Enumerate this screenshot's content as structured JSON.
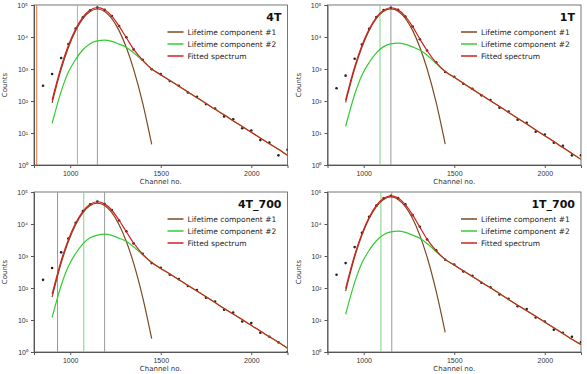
{
  "chart_data": [
    {
      "type": "line",
      "title": "4T",
      "x_label": "Channel no.",
      "y_label": "Counts",
      "log": "y",
      "legend": "upper right",
      "xlim": [
        800,
        2200
      ],
      "xticks": [
        1000,
        1500,
        2000
      ],
      "ylim": [
        1,
        100000
      ],
      "yticks": [
        {
          "value": 1,
          "label": "10⁰"
        },
        {
          "value": 10,
          "label": "10¹"
        },
        {
          "value": 100,
          "label": "10²"
        },
        {
          "value": 1000,
          "label": "10³"
        },
        {
          "value": 10000,
          "label": "10⁴"
        },
        {
          "value": 100000,
          "label": "10⁵"
        }
      ],
      "x": [
        850,
        900,
        950,
        990,
        1030,
        1070,
        1110,
        1150,
        1190,
        1230,
        1270,
        1310,
        1350,
        1400,
        1450,
        1500,
        1550,
        1600,
        1650,
        1700,
        1750,
        1800,
        1850,
        1900,
        1950,
        2000,
        2050,
        2100,
        2150,
        2200
      ],
      "vlines": [
        {
          "x": 815,
          "color": "#e8743b"
        },
        {
          "x": 1040,
          "color": "#7fd17f"
        },
        {
          "x": 1150,
          "color": "#999999"
        }
      ],
      "series": [
        {
          "type": "scatter",
          "marker": "circle",
          "color": "#222222",
          "values": [
            300,
            700,
            2200,
            6000,
            18500,
            41000,
            68000,
            83000,
            70500,
            45500,
            22000,
            9800,
            4100,
            1950,
            980,
            690,
            420,
            300,
            185,
            135,
            80,
            58,
            33,
            27,
            14,
            12,
            6,
            5,
            2,
            3
          ]
        },
        {
          "name": "Lifetime component #1",
          "type": "line",
          "line_style": "solid",
          "color": "#7b4b22",
          "values": [
            null,
            87,
            994,
            4710,
            15800,
            37500,
            63000,
            75000,
            63000,
            37500,
            15800,
            4710,
            994,
            87,
            4.4,
            null,
            null,
            null,
            null,
            null,
            null,
            null,
            null,
            null,
            null,
            null,
            null,
            null,
            null,
            null
          ]
        },
        {
          "name": "Lifetime component #2",
          "type": "line",
          "line_style": "solid",
          "color": "#33cc33",
          "values": [
            null,
            20,
            200,
            800,
            2000,
            4000,
            6200,
            7600,
            8000,
            7300,
            6000,
            4800,
            3200,
            1800,
            1000,
            665,
            440,
            290,
            192,
            127,
            84,
            55,
            37,
            24,
            16,
            10.6,
            7,
            4.6,
            3.1,
            2
          ]
        },
        {
          "name": "Fitted spectrum",
          "type": "line",
          "line_style": "solid",
          "color": "#d42020",
          "values": [
            null,
            107,
            1190,
            5510,
            17800,
            41500,
            69200,
            82600,
            71000,
            44800,
            21800,
            9510,
            4190,
            1890,
            1000,
            665,
            440,
            290,
            192,
            127,
            84,
            55,
            37,
            24,
            16,
            10.6,
            7,
            4.6,
            3.1,
            2
          ]
        }
      ]
    },
    {
      "type": "line",
      "title": "1T",
      "x_label": "Channel no.",
      "y_label": "Counts",
      "log": "y",
      "legend": "upper right",
      "xlim": [
        800,
        2200
      ],
      "xticks": [
        1000,
        1500,
        2000
      ],
      "ylim": [
        1,
        100000
      ],
      "yticks": [
        {
          "value": 1,
          "label": "10⁰"
        },
        {
          "value": 10,
          "label": "10¹"
        },
        {
          "value": 100,
          "label": "10²"
        },
        {
          "value": 1000,
          "label": "10³"
        },
        {
          "value": 10000,
          "label": "10⁴"
        },
        {
          "value": 100000,
          "label": "10⁵"
        }
      ],
      "x": [
        850,
        900,
        950,
        990,
        1030,
        1070,
        1110,
        1150,
        1190,
        1230,
        1270,
        1310,
        1350,
        1400,
        1450,
        1500,
        1550,
        1600,
        1650,
        1700,
        1750,
        1800,
        1850,
        1900,
        1950,
        2000,
        2050,
        2100,
        2150,
        2200
      ],
      "vlines": [
        {
          "x": 1090,
          "color": "#7fd17f"
        },
        {
          "x": 1150,
          "color": "#999999"
        }
      ],
      "series": [
        {
          "type": "scatter",
          "marker": "circle",
          "color": "#222222",
          "values": [
            250,
            620,
            2100,
            5800,
            18000,
            41800,
            69500,
            81500,
            71200,
            43800,
            21300,
            8500,
            3800,
            1620,
            810,
            570,
            345,
            240,
            150,
            108,
            62,
            47,
            26,
            21,
            11,
            9,
            5,
            4,
            2,
            2
          ]
        },
        {
          "name": "Lifetime component #1",
          "type": "line",
          "line_style": "solid",
          "color": "#7b4b22",
          "values": [
            null,
            90,
            1020,
            4800,
            16100,
            38200,
            64000,
            76000,
            64000,
            38200,
            16100,
            4800,
            1020,
            90,
            4.5,
            null,
            null,
            null,
            null,
            null,
            null,
            null,
            null,
            null,
            null,
            null,
            null,
            null,
            null,
            null
          ]
        },
        {
          "name": "Lifetime component #2",
          "type": "line",
          "line_style": "solid",
          "color": "#33cc33",
          "values": [
            null,
            16,
            160,
            640,
            1600,
            3200,
            5000,
            6100,
            6400,
            5900,
            4900,
            3900,
            2700,
            1500,
            830,
            550,
            360,
            235,
            155,
            102,
            67,
            44,
            29,
            19,
            12.5,
            8.2,
            5.4,
            3.5,
            2.3,
            1.5
          ]
        },
        {
          "name": "Fitted spectrum",
          "type": "line",
          "line_style": "solid",
          "color": "#d42020",
          "values": [
            null,
            106,
            1180,
            5440,
            17700,
            41400,
            69000,
            82100,
            70400,
            44100,
            21000,
            8700,
            3720,
            1590,
            835,
            550,
            360,
            235,
            155,
            102,
            67,
            44,
            29,
            19,
            12.5,
            8.2,
            5.4,
            3.5,
            2.3,
            1.5
          ]
        }
      ]
    },
    {
      "type": "line",
      "title": "4T_700",
      "x_label": "Channel no.",
      "y_label": "Counts",
      "log": "y",
      "legend": "upper right",
      "xlim": [
        800,
        2200
      ],
      "xticks": [
        1000,
        1500,
        2000
      ],
      "ylim": [
        1,
        100000
      ],
      "yticks": [
        {
          "value": 1,
          "label": "10⁰"
        },
        {
          "value": 10,
          "label": "10¹"
        },
        {
          "value": 100,
          "label": "10²"
        },
        {
          "value": 1000,
          "label": "10³"
        },
        {
          "value": 10000,
          "label": "10⁴"
        },
        {
          "value": 100000,
          "label": "10⁵"
        }
      ],
      "x": [
        850,
        900,
        950,
        990,
        1030,
        1070,
        1110,
        1150,
        1190,
        1230,
        1270,
        1310,
        1350,
        1400,
        1450,
        1500,
        1550,
        1600,
        1650,
        1700,
        1750,
        1800,
        1850,
        1900,
        1950,
        2000,
        2050,
        2100,
        2150,
        2200
      ],
      "vlines": [
        {
          "x": 930,
          "color": "#c98a5a"
        },
        {
          "x": 1075,
          "color": "#7fd17f"
        },
        {
          "x": 1190,
          "color": "#999999"
        }
      ],
      "series": [
        {
          "type": "scatter",
          "marker": "circle",
          "color": "#222222",
          "values": [
            180,
            420,
            1300,
            3500,
            11000,
            25300,
            41000,
            50200,
            42000,
            27400,
            12800,
            5900,
            2480,
            1180,
            600,
            430,
            260,
            190,
            115,
            86,
            50,
            38,
            21,
            17,
            9,
            8,
            4,
            3,
            2,
            1
          ]
        },
        {
          "name": "Lifetime component #1",
          "type": "line",
          "line_style": "solid",
          "color": "#7b4b22",
          "values": [
            null,
            52,
            600,
            2830,
            9500,
            22500,
            37800,
            45000,
            37800,
            22500,
            9500,
            2830,
            600,
            52,
            2.6,
            null,
            null,
            null,
            null,
            null,
            null,
            null,
            null,
            null,
            null,
            null,
            null,
            null,
            null,
            null
          ]
        },
        {
          "name": "Lifetime component #2",
          "type": "line",
          "line_style": "solid",
          "color": "#33cc33",
          "values": [
            null,
            12,
            120,
            480,
            1200,
            2400,
            3700,
            4500,
            4800,
            4400,
            3600,
            2900,
            1950,
            1100,
            620,
            410,
            275,
            182,
            120,
            80,
            53,
            35,
            23,
            15.5,
            10.3,
            6.8,
            4.5,
            3,
            2,
            1.3
          ]
        },
        {
          "name": "Fitted spectrum",
          "type": "line",
          "line_style": "solid",
          "color": "#d42020",
          "values": [
            null,
            64,
            720,
            3310,
            10700,
            24900,
            41500,
            49500,
            42600,
            26900,
            13100,
            5730,
            2550,
            1150,
            623,
            410,
            275,
            182,
            120,
            80,
            53,
            35,
            23,
            15.5,
            10.3,
            6.8,
            4.5,
            3,
            2,
            1.3
          ]
        }
      ]
    },
    {
      "type": "line",
      "title": "1T_700",
      "x_label": "Channel no.",
      "y_label": "Counts",
      "log": "y",
      "legend": "upper right",
      "xlim": [
        800,
        2200
      ],
      "xticks": [
        1000,
        1500,
        2000
      ],
      "ylim": [
        1,
        100000
      ],
      "yticks": [
        {
          "value": 1,
          "label": "10⁰"
        },
        {
          "value": 10,
          "label": "10¹"
        },
        {
          "value": 100,
          "label": "10²"
        },
        {
          "value": 1000,
          "label": "10³"
        },
        {
          "value": 10000,
          "label": "10⁴"
        },
        {
          "value": 100000,
          "label": "10⁵"
        }
      ],
      "x": [
        850,
        900,
        950,
        990,
        1030,
        1070,
        1110,
        1150,
        1190,
        1230,
        1270,
        1310,
        1350,
        1400,
        1450,
        1500,
        1550,
        1600,
        1650,
        1700,
        1750,
        1800,
        1850,
        1900,
        1950,
        2000,
        2050,
        2100,
        2150,
        2200
      ],
      "vlines": [
        {
          "x": 1095,
          "color": "#7fd17f"
        },
        {
          "x": 1155,
          "color": "#999999"
        }
      ],
      "series": [
        {
          "type": "scatter",
          "marker": "circle",
          "color": "#222222",
          "values": [
            260,
            600,
            1900,
            5300,
            16700,
            37500,
            64000,
            76500,
            64200,
            41000,
            19000,
            8200,
            3300,
            1500,
            760,
            540,
            330,
            240,
            146,
            106,
            63,
            46,
            27,
            22,
            12,
            9,
            5,
            4,
            3,
            2
          ]
        },
        {
          "name": "Lifetime component #1",
          "type": "line",
          "line_style": "solid",
          "color": "#7b4b22",
          "values": [
            null,
            80,
            930,
            4400,
            14800,
            35000,
            58800,
            70000,
            58800,
            35000,
            14800,
            4400,
            930,
            80,
            4.1,
            null,
            null,
            null,
            null,
            null,
            null,
            null,
            null,
            null,
            null,
            null,
            null,
            null,
            null,
            null
          ]
        },
        {
          "name": "Lifetime component #2",
          "type": "line",
          "line_style": "solid",
          "color": "#33cc33",
          "values": [
            null,
            15,
            150,
            600,
            1500,
            3000,
            4650,
            5700,
            6000,
            5500,
            4500,
            3600,
            2450,
            1380,
            780,
            520,
            345,
            230,
            152,
            101,
            67,
            44,
            29,
            19.5,
            13,
            8.6,
            5.7,
            3.8,
            2.5,
            1.7
          ]
        },
        {
          "name": "Fitted spectrum",
          "type": "line",
          "line_style": "solid",
          "color": "#d42020",
          "values": [
            null,
            95,
            1080,
            5000,
            16300,
            38000,
            63450,
            75700,
            64800,
            40500,
            19300,
            8000,
            3380,
            1460,
            784,
            520,
            345,
            230,
            152,
            101,
            67,
            44,
            29,
            19.5,
            13,
            8.6,
            5.7,
            3.8,
            2.5,
            1.7
          ]
        }
      ]
    }
  ]
}
